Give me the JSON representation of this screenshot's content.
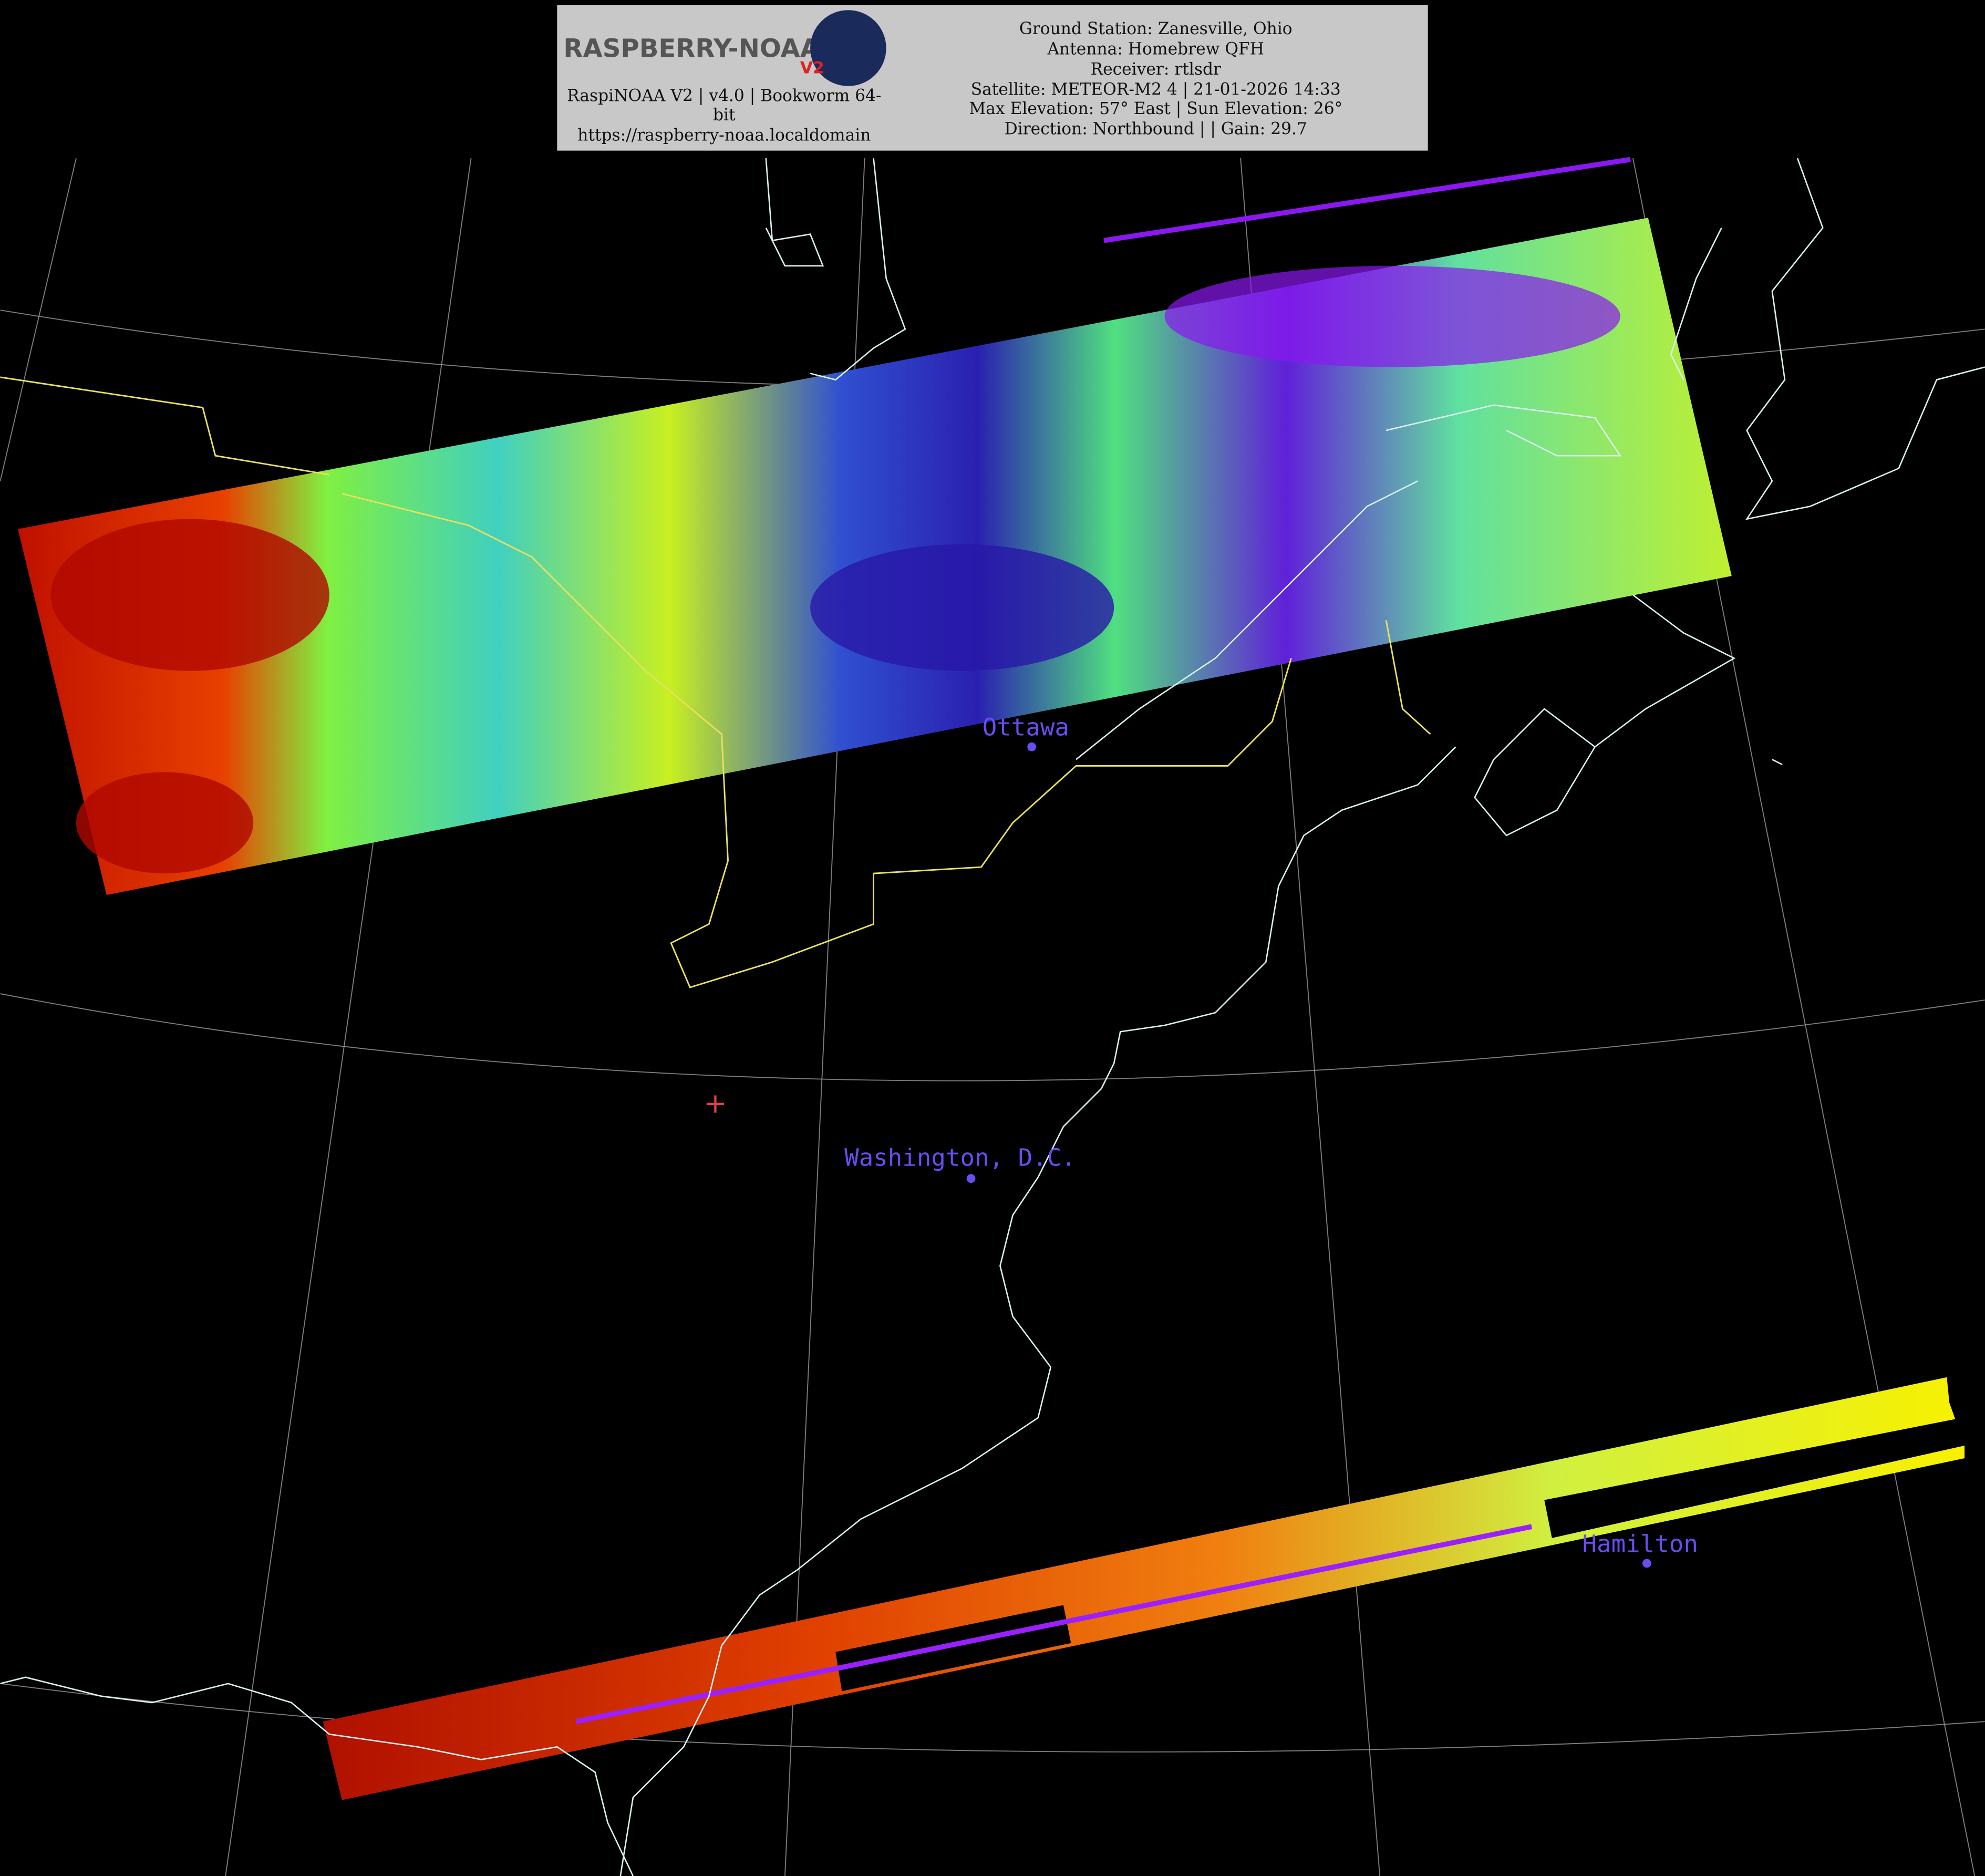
{
  "header": {
    "logo_text": "RASPBERRY-NOAA",
    "logo_badge": "V2",
    "left_lines": [
      "RaspiNOAA V2 | v4.0 | Bookworm 64-",
      "bit",
      "https://raspberry-noaa.localdomain"
    ],
    "right_lines": [
      "Ground Station: Zanesville, Ohio",
      "Antenna: Homebrew QFH",
      "Receiver: rtlsdr",
      "Satellite: METEOR-M2 4 | 21-01-2026 14:33",
      "Max Elevation: 57° East | Sun Elevation: 26°",
      "Direction: Northbound | | Gain: 29.7"
    ]
  },
  "cities": [
    {
      "label": "Ottawa"
    },
    {
      "label": "Washington, D.C."
    },
    {
      "label": "Hamilton"
    }
  ]
}
